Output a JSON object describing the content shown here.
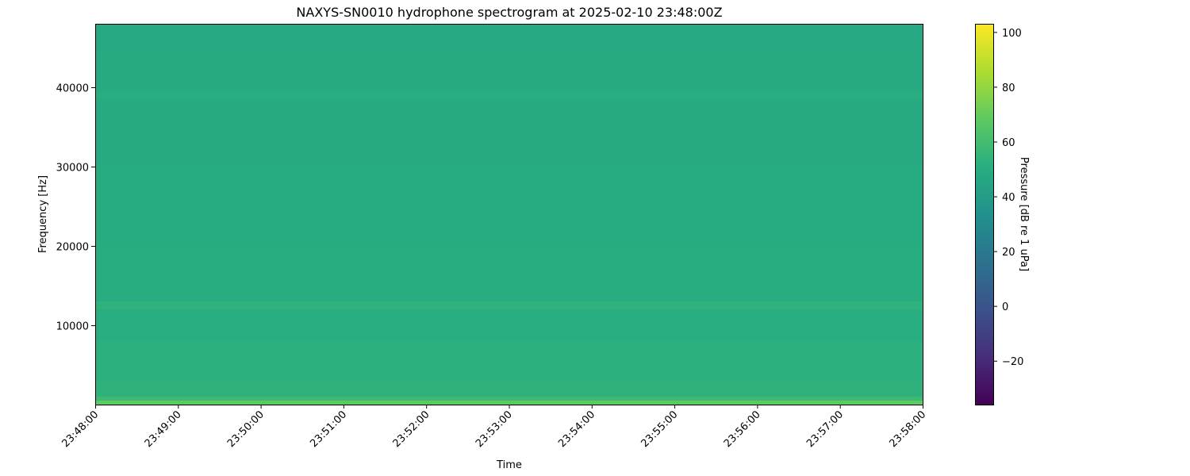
{
  "chart_data": {
    "type": "heatmap",
    "title": "NAXYS-SN0010 hydrophone spectrogram at 2025-02-10 23:48:00Z",
    "xlabel": "Time",
    "ylabel": "Frequency [Hz]",
    "colorbar_label": "Pressure [dB re 1 uPa]",
    "colormap": "viridis",
    "xlim": [
      "23:48:00",
      "23:58:00"
    ],
    "ylim": [
      0,
      48000
    ],
    "clim": [
      -36,
      103
    ],
    "x_ticks": [
      "23:48:00",
      "23:49:00",
      "23:50:00",
      "23:51:00",
      "23:52:00",
      "23:53:00",
      "23:54:00",
      "23:55:00",
      "23:56:00",
      "23:57:00",
      "23:58:00"
    ],
    "y_ticks": [
      10000,
      20000,
      30000,
      40000
    ],
    "y_tick_labels": [
      "10000",
      "20000",
      "30000",
      "40000"
    ],
    "colorbar_ticks": [
      -20,
      0,
      20,
      40,
      60,
      80,
      100
    ],
    "colorbar_tick_labels": [
      "−20",
      "0",
      "20",
      "40",
      "60",
      "80",
      "100"
    ],
    "frequency_bands": [
      {
        "f0": 0,
        "f1": 500,
        "db": 68
      },
      {
        "f0": 500,
        "f1": 1000,
        "db": 58
      },
      {
        "f0": 1000,
        "f1": 3000,
        "db": 53
      },
      {
        "f0": 3000,
        "f1": 8000,
        "db": 52
      },
      {
        "f0": 8000,
        "f1": 12000,
        "db": 51
      },
      {
        "f0": 12000,
        "f1": 13000,
        "db": 53
      },
      {
        "f0": 13000,
        "f1": 20000,
        "db": 50.5
      },
      {
        "f0": 20000,
        "f1": 30000,
        "db": 49.5
      },
      {
        "f0": 30000,
        "f1": 38500,
        "db": 48.5
      },
      {
        "f0": 38500,
        "f1": 39500,
        "db": 51
      },
      {
        "f0": 39500,
        "f1": 45000,
        "db": 48
      },
      {
        "f0": 45000,
        "f1": 48000,
        "db": 47
      }
    ]
  }
}
